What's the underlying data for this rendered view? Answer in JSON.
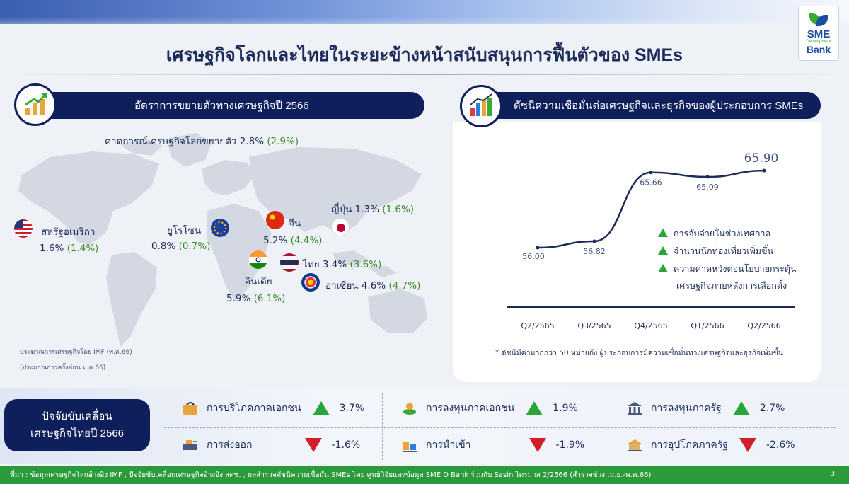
{
  "title": "เศรษฐกิจโลกและไทยในระยะข้างหน้าสนับสนุนการฟื้นตัวของ SMEs",
  "logo": {
    "line1": "SME",
    "line2": "Development",
    "line3": "Bank"
  },
  "left_section": {
    "header": "อัตราการขยายตัวทางเศรษฐกิจปี 2566",
    "icon": "gdp-growth-icon",
    "world": {
      "text": "คาดการณ์เศรษฐกิจโลกขยายตัว 2.8%",
      "prev": "(2.9%)"
    },
    "countries": [
      {
        "name": "สหรัฐอเมริกา",
        "value": "1.6%",
        "prev": "(1.4%)"
      },
      {
        "name": "ยูโรโซน",
        "value": "0.8%",
        "prev": "(0.7%)"
      },
      {
        "name": "จีน",
        "value": "5.2%",
        "prev": "(4.4%)"
      },
      {
        "name": "ญี่ปุ่น",
        "value": "1.3%",
        "prev": "(1.6%)"
      },
      {
        "name": "อินเดีย",
        "value": "5.9%",
        "prev": "(6.1%)"
      },
      {
        "name": "ไทย",
        "value": "3.4%",
        "prev": "(3.6%)"
      },
      {
        "name": "อาเซียน",
        "value": "4.6%",
        "prev": "(4.7%)"
      }
    ],
    "note1": "ประมาณการเศรษฐกิจโดย IMF (พ.ค.66)",
    "note2": "(ประมาณการครั้งก่อน ม.ค.66)"
  },
  "right_section": {
    "header": "ดัชนีความเชื่อมั่นต่อเศรษฐกิจและธุรกิจของผู้ประกอบการ SMEs",
    "icon": "bar-chart-growth-icon",
    "legend": [
      "การจับจ่ายในช่วงเทศกาล",
      "จำนวนนักท่องเที่ยวเพิ่มขึ้น",
      "ความคาดหวังต่อนโยบายกระตุ้น",
      "เศรษฐกิจภายหลังการเลือกตั้ง"
    ],
    "footnote": "* ดัชนีมีค่ามากกว่า 50 หมายถึง ผู้ประกอบการมีความเชื่อมั่นทางเศรษฐกิจและธุรกิจเพิ่มขึ้น"
  },
  "chart_data": {
    "type": "line",
    "categories": [
      "Q2/2565",
      "Q3/2565",
      "Q4/2565",
      "Q1/2566",
      "Q2/2566"
    ],
    "values": [
      56.0,
      56.82,
      65.66,
      65.09,
      65.9
    ],
    "value_labels": [
      "56.00",
      "56.82",
      "65.66",
      "65.09",
      "65.90"
    ],
    "color": "#1c2b5a"
  },
  "drivers": {
    "label_line1": "ปัจจัยขับเคลื่อน",
    "label_line2": "เศรษฐกิจไทยปี 2566",
    "items": [
      {
        "label": "การบริโภคภาคเอกชน",
        "value": "3.7%",
        "direction": "up",
        "icon": "shopping-icon"
      },
      {
        "label": "การลงทุนภาคเอกชน",
        "value": "1.9%",
        "direction": "up",
        "icon": "investment-icon"
      },
      {
        "label": "การลงทุนภาครัฐ",
        "value": "2.7%",
        "direction": "up",
        "icon": "government-building-icon"
      },
      {
        "label": "การส่งออก",
        "value": "-1.6%",
        "direction": "down",
        "icon": "export-icon"
      },
      {
        "label": "การนำเข้า",
        "value": "-1.9%",
        "direction": "down",
        "icon": "import-icon"
      },
      {
        "label": "การอุปโภคภาครัฐ",
        "value": "-2.6%",
        "direction": "down",
        "icon": "government-spending-icon"
      }
    ]
  },
  "source": "ที่มา : ข้อมูลเศรษฐกิจโลกอ้างอิง IMF , ปัจจัยขับเคลื่อนเศรษฐกิจอ้างอิง สศช. , ผลสำรวจดัชนีความเชื่อมั่น SMEs โดย ศูนย์วิจัยและข้อมูล SME D Bank ร่วมกับ Sasin ไตรมาส 2/2566 (สำรวจช่วง เม.ย.-พ.ค.66)",
  "page_number": "3",
  "colors": {
    "navy": "#0f1f5c",
    "green": "#2aa53a",
    "red": "#d01f2a",
    "prev_green": "#3b8a2e"
  }
}
